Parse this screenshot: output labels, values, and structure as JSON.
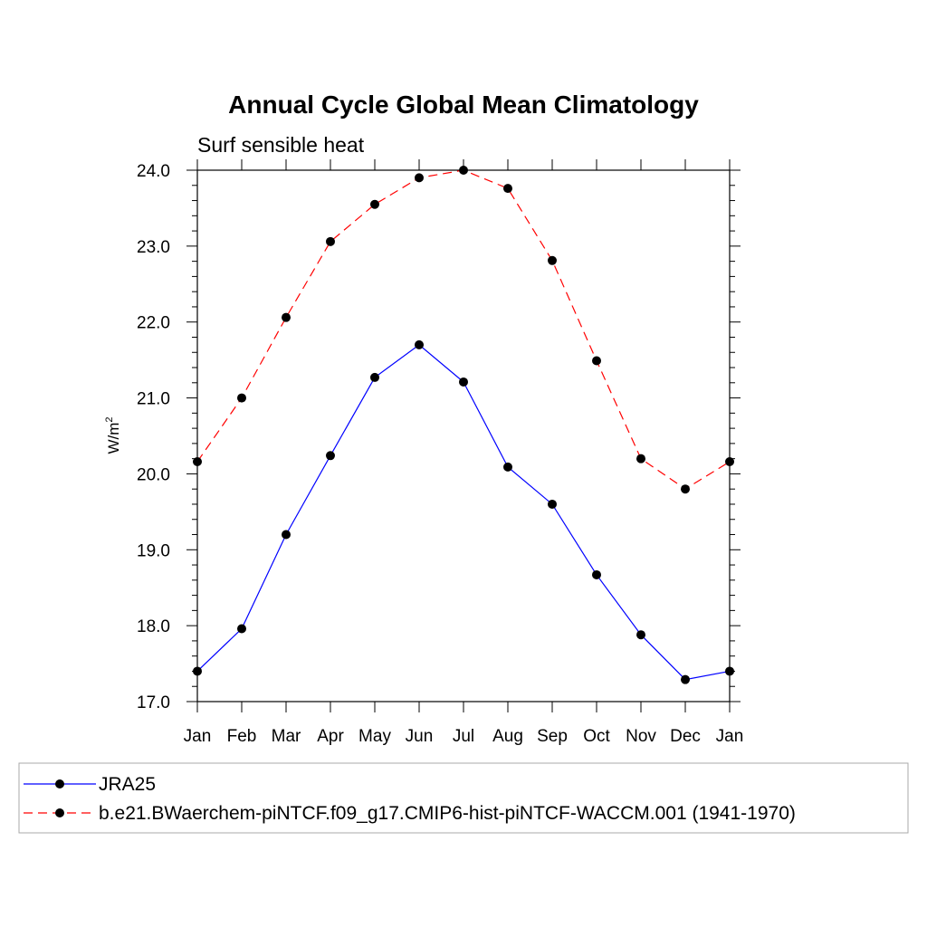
{
  "chart_data": {
    "type": "line",
    "title": "Annual Cycle Global Mean Climatology",
    "subtitle": "Surf sensible heat",
    "ylabel": "W/m",
    "ylabel_sup": "2",
    "xlabel": "",
    "categories": [
      "Jan",
      "Feb",
      "Mar",
      "Apr",
      "May",
      "Jun",
      "Jul",
      "Aug",
      "Sep",
      "Oct",
      "Nov",
      "Dec",
      "Jan"
    ],
    "ylim": [
      17.0,
      24.0
    ],
    "yticks": [
      "17.0",
      "18.0",
      "19.0",
      "20.0",
      "21.0",
      "22.0",
      "23.0",
      "24.0"
    ],
    "grid": false,
    "legend_position": "bottom",
    "series": [
      {
        "name": "JRA25",
        "color": "#0000ff",
        "dash": "solid",
        "values": [
          17.4,
          17.96,
          19.2,
          20.24,
          21.27,
          21.7,
          21.21,
          20.09,
          19.6,
          18.67,
          17.88,
          17.29,
          17.4
        ]
      },
      {
        "name": "b.e21.BWaerchem-piNTCF.f09_g17.CMIP6-hist-piNTCF-WACCM.001 (1941-1970)",
        "color": "#ff0000",
        "dash": "dashed",
        "values": [
          20.16,
          21.0,
          22.06,
          23.06,
          23.55,
          23.9,
          24.0,
          23.76,
          22.81,
          21.49,
          20.2,
          19.8,
          20.16
        ]
      }
    ]
  }
}
